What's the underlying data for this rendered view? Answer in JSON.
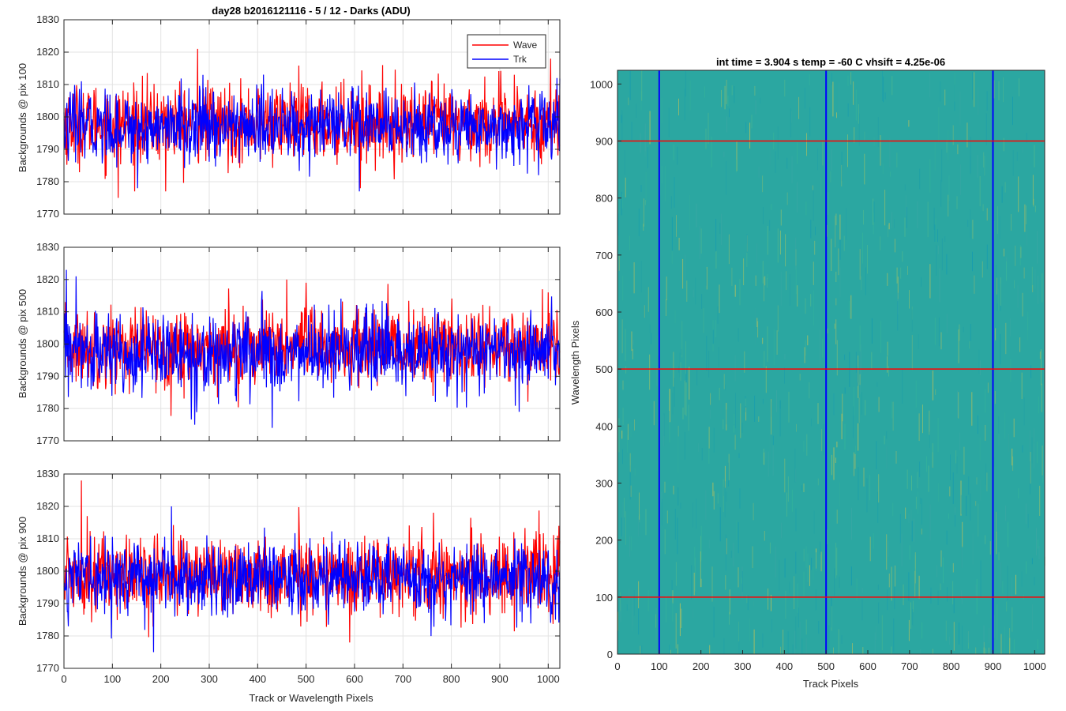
{
  "figure": {
    "background": "#ffffff"
  },
  "chart_data": [
    {
      "type": "line",
      "title": "day28 b2016121116 - 5 / 12 - Darks (ADU)",
      "xlabel": "",
      "ylabel": "Backgrounds @ pix 100",
      "xlim": [
        0,
        1024
      ],
      "ylim": [
        1770,
        1830
      ],
      "xticks": [
        0,
        100,
        200,
        300,
        400,
        500,
        600,
        700,
        800,
        900,
        1000
      ],
      "yticks": [
        1770,
        1780,
        1790,
        1800,
        1810,
        1820,
        1830
      ],
      "show_xtick_labels": false,
      "grid": true,
      "legend": "top-right",
      "series": [
        {
          "name": "Wave",
          "color": "#ff0000",
          "mean": 1798,
          "std": 6,
          "spikes": [
            [
              276,
              1821
            ],
            [
              112,
              1775
            ],
            [
              210,
              1777
            ],
            [
              1005,
              1818
            ],
            [
              612,
              1778
            ]
          ]
        },
        {
          "name": "Trk",
          "color": "#0000ff",
          "mean": 1797,
          "std": 5.5,
          "spikes": [
            [
              152,
              1778
            ],
            [
              610,
              1777
            ],
            [
              1018,
              1812
            ]
          ]
        }
      ]
    },
    {
      "type": "line",
      "title": "",
      "xlabel": "",
      "ylabel": "Backgrounds @ pix 500",
      "xlim": [
        0,
        1024
      ],
      "ylim": [
        1770,
        1830
      ],
      "xticks": [
        0,
        100,
        200,
        300,
        400,
        500,
        600,
        700,
        800,
        900,
        1000
      ],
      "yticks": [
        1770,
        1780,
        1790,
        1800,
        1810,
        1820,
        1830
      ],
      "show_xtick_labels": false,
      "grid": true,
      "series": [
        {
          "name": "Wave",
          "color": "#ff0000",
          "mean": 1799,
          "std": 6,
          "spikes": [
            [
              460,
              1820
            ],
            [
              1000,
              1816
            ],
            [
              500,
              1819
            ]
          ]
        },
        {
          "name": "Trk",
          "color": "#0000ff",
          "mean": 1797,
          "std": 6,
          "spikes": [
            [
              5,
              1823
            ],
            [
              25,
              1821
            ],
            [
              270,
              1775
            ],
            [
              430,
              1774
            ],
            [
              940,
              1779
            ]
          ]
        }
      ]
    },
    {
      "type": "line",
      "title": "",
      "xlabel": "Track or Wavelength Pixels",
      "ylabel": "Backgrounds @ pix 900",
      "xlim": [
        0,
        1024
      ],
      "ylim": [
        1770,
        1830
      ],
      "xticks": [
        0,
        100,
        200,
        300,
        400,
        500,
        600,
        700,
        800,
        900,
        1000
      ],
      "yticks": [
        1770,
        1780,
        1790,
        1800,
        1810,
        1820,
        1830
      ],
      "show_xtick_labels": true,
      "grid": true,
      "series": [
        {
          "name": "Wave",
          "color": "#ff0000",
          "mean": 1799,
          "std": 6,
          "spikes": [
            [
              36,
              1828
            ],
            [
              48,
              1817
            ],
            [
              590,
              1778
            ],
            [
              1022,
              1814
            ]
          ]
        },
        {
          "name": "Trk",
          "color": "#0000ff",
          "mean": 1798,
          "std": 5.5,
          "spikes": [
            [
              185,
              1775
            ],
            [
              222,
              1820
            ],
            [
              1015,
              1785
            ]
          ]
        }
      ]
    },
    {
      "type": "heatmap",
      "title": "int time = 3.904 s   temp = -60 C   vhsift = 4.25e-06",
      "xlabel": "Track Pixels",
      "ylabel": "Wavelength Pixels",
      "xlim": [
        0,
        1024
      ],
      "ylim": [
        0,
        1024
      ],
      "xticks": [
        0,
        100,
        200,
        300,
        400,
        500,
        600,
        700,
        800,
        900,
        1000
      ],
      "yticks": [
        0,
        100,
        200,
        300,
        400,
        500,
        600,
        700,
        800,
        900,
        1000
      ],
      "colormap": "parula",
      "base_color": "#2ba7a1",
      "vertical_markers": {
        "color": "#0000ff",
        "x": [
          100,
          500,
          900
        ]
      },
      "horizontal_markers": {
        "color": "#ff0000",
        "y": [
          100,
          500,
          900
        ]
      }
    }
  ]
}
